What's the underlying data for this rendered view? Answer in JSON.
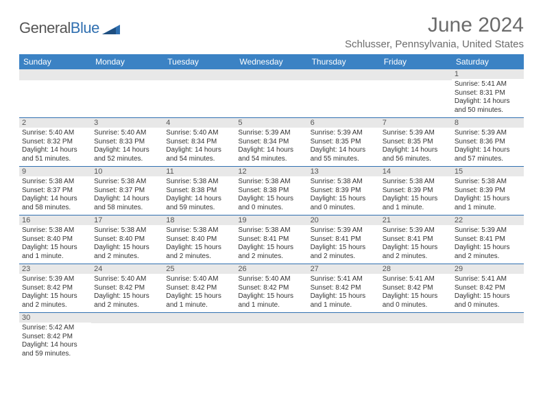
{
  "logo": {
    "text_general": "General",
    "text_blue": "Blue",
    "triangle_color": "#2f6fb0"
  },
  "title": "June 2024",
  "location": "Schlusser, Pennsylvania, United States",
  "header_bg": "#3b82c4",
  "day_headers": [
    "Sunday",
    "Monday",
    "Tuesday",
    "Wednesday",
    "Thursday",
    "Friday",
    "Saturday"
  ],
  "weeks": [
    [
      null,
      null,
      null,
      null,
      null,
      null,
      {
        "n": "1",
        "sunrise": "Sunrise: 5:41 AM",
        "sunset": "Sunset: 8:31 PM",
        "daylight": "Daylight: 14 hours and 50 minutes."
      }
    ],
    [
      {
        "n": "2",
        "sunrise": "Sunrise: 5:40 AM",
        "sunset": "Sunset: 8:32 PM",
        "daylight": "Daylight: 14 hours and 51 minutes."
      },
      {
        "n": "3",
        "sunrise": "Sunrise: 5:40 AM",
        "sunset": "Sunset: 8:33 PM",
        "daylight": "Daylight: 14 hours and 52 minutes."
      },
      {
        "n": "4",
        "sunrise": "Sunrise: 5:40 AM",
        "sunset": "Sunset: 8:34 PM",
        "daylight": "Daylight: 14 hours and 54 minutes."
      },
      {
        "n": "5",
        "sunrise": "Sunrise: 5:39 AM",
        "sunset": "Sunset: 8:34 PM",
        "daylight": "Daylight: 14 hours and 54 minutes."
      },
      {
        "n": "6",
        "sunrise": "Sunrise: 5:39 AM",
        "sunset": "Sunset: 8:35 PM",
        "daylight": "Daylight: 14 hours and 55 minutes."
      },
      {
        "n": "7",
        "sunrise": "Sunrise: 5:39 AM",
        "sunset": "Sunset: 8:35 PM",
        "daylight": "Daylight: 14 hours and 56 minutes."
      },
      {
        "n": "8",
        "sunrise": "Sunrise: 5:39 AM",
        "sunset": "Sunset: 8:36 PM",
        "daylight": "Daylight: 14 hours and 57 minutes."
      }
    ],
    [
      {
        "n": "9",
        "sunrise": "Sunrise: 5:38 AM",
        "sunset": "Sunset: 8:37 PM",
        "daylight": "Daylight: 14 hours and 58 minutes."
      },
      {
        "n": "10",
        "sunrise": "Sunrise: 5:38 AM",
        "sunset": "Sunset: 8:37 PM",
        "daylight": "Daylight: 14 hours and 58 minutes."
      },
      {
        "n": "11",
        "sunrise": "Sunrise: 5:38 AM",
        "sunset": "Sunset: 8:38 PM",
        "daylight": "Daylight: 14 hours and 59 minutes."
      },
      {
        "n": "12",
        "sunrise": "Sunrise: 5:38 AM",
        "sunset": "Sunset: 8:38 PM",
        "daylight": "Daylight: 15 hours and 0 minutes."
      },
      {
        "n": "13",
        "sunrise": "Sunrise: 5:38 AM",
        "sunset": "Sunset: 8:39 PM",
        "daylight": "Daylight: 15 hours and 0 minutes."
      },
      {
        "n": "14",
        "sunrise": "Sunrise: 5:38 AM",
        "sunset": "Sunset: 8:39 PM",
        "daylight": "Daylight: 15 hours and 1 minute."
      },
      {
        "n": "15",
        "sunrise": "Sunrise: 5:38 AM",
        "sunset": "Sunset: 8:39 PM",
        "daylight": "Daylight: 15 hours and 1 minute."
      }
    ],
    [
      {
        "n": "16",
        "sunrise": "Sunrise: 5:38 AM",
        "sunset": "Sunset: 8:40 PM",
        "daylight": "Daylight: 15 hours and 1 minute."
      },
      {
        "n": "17",
        "sunrise": "Sunrise: 5:38 AM",
        "sunset": "Sunset: 8:40 PM",
        "daylight": "Daylight: 15 hours and 2 minutes."
      },
      {
        "n": "18",
        "sunrise": "Sunrise: 5:38 AM",
        "sunset": "Sunset: 8:40 PM",
        "daylight": "Daylight: 15 hours and 2 minutes."
      },
      {
        "n": "19",
        "sunrise": "Sunrise: 5:38 AM",
        "sunset": "Sunset: 8:41 PM",
        "daylight": "Daylight: 15 hours and 2 minutes."
      },
      {
        "n": "20",
        "sunrise": "Sunrise: 5:39 AM",
        "sunset": "Sunset: 8:41 PM",
        "daylight": "Daylight: 15 hours and 2 minutes."
      },
      {
        "n": "21",
        "sunrise": "Sunrise: 5:39 AM",
        "sunset": "Sunset: 8:41 PM",
        "daylight": "Daylight: 15 hours and 2 minutes."
      },
      {
        "n": "22",
        "sunrise": "Sunrise: 5:39 AM",
        "sunset": "Sunset: 8:41 PM",
        "daylight": "Daylight: 15 hours and 2 minutes."
      }
    ],
    [
      {
        "n": "23",
        "sunrise": "Sunrise: 5:39 AM",
        "sunset": "Sunset: 8:42 PM",
        "daylight": "Daylight: 15 hours and 2 minutes."
      },
      {
        "n": "24",
        "sunrise": "Sunrise: 5:40 AM",
        "sunset": "Sunset: 8:42 PM",
        "daylight": "Daylight: 15 hours and 2 minutes."
      },
      {
        "n": "25",
        "sunrise": "Sunrise: 5:40 AM",
        "sunset": "Sunset: 8:42 PM",
        "daylight": "Daylight: 15 hours and 1 minute."
      },
      {
        "n": "26",
        "sunrise": "Sunrise: 5:40 AM",
        "sunset": "Sunset: 8:42 PM",
        "daylight": "Daylight: 15 hours and 1 minute."
      },
      {
        "n": "27",
        "sunrise": "Sunrise: 5:41 AM",
        "sunset": "Sunset: 8:42 PM",
        "daylight": "Daylight: 15 hours and 1 minute."
      },
      {
        "n": "28",
        "sunrise": "Sunrise: 5:41 AM",
        "sunset": "Sunset: 8:42 PM",
        "daylight": "Daylight: 15 hours and 0 minutes."
      },
      {
        "n": "29",
        "sunrise": "Sunrise: 5:41 AM",
        "sunset": "Sunset: 8:42 PM",
        "daylight": "Daylight: 15 hours and 0 minutes."
      }
    ],
    [
      {
        "n": "30",
        "sunrise": "Sunrise: 5:42 AM",
        "sunset": "Sunset: 8:42 PM",
        "daylight": "Daylight: 14 hours and 59 minutes."
      },
      null,
      null,
      null,
      null,
      null,
      null
    ]
  ]
}
